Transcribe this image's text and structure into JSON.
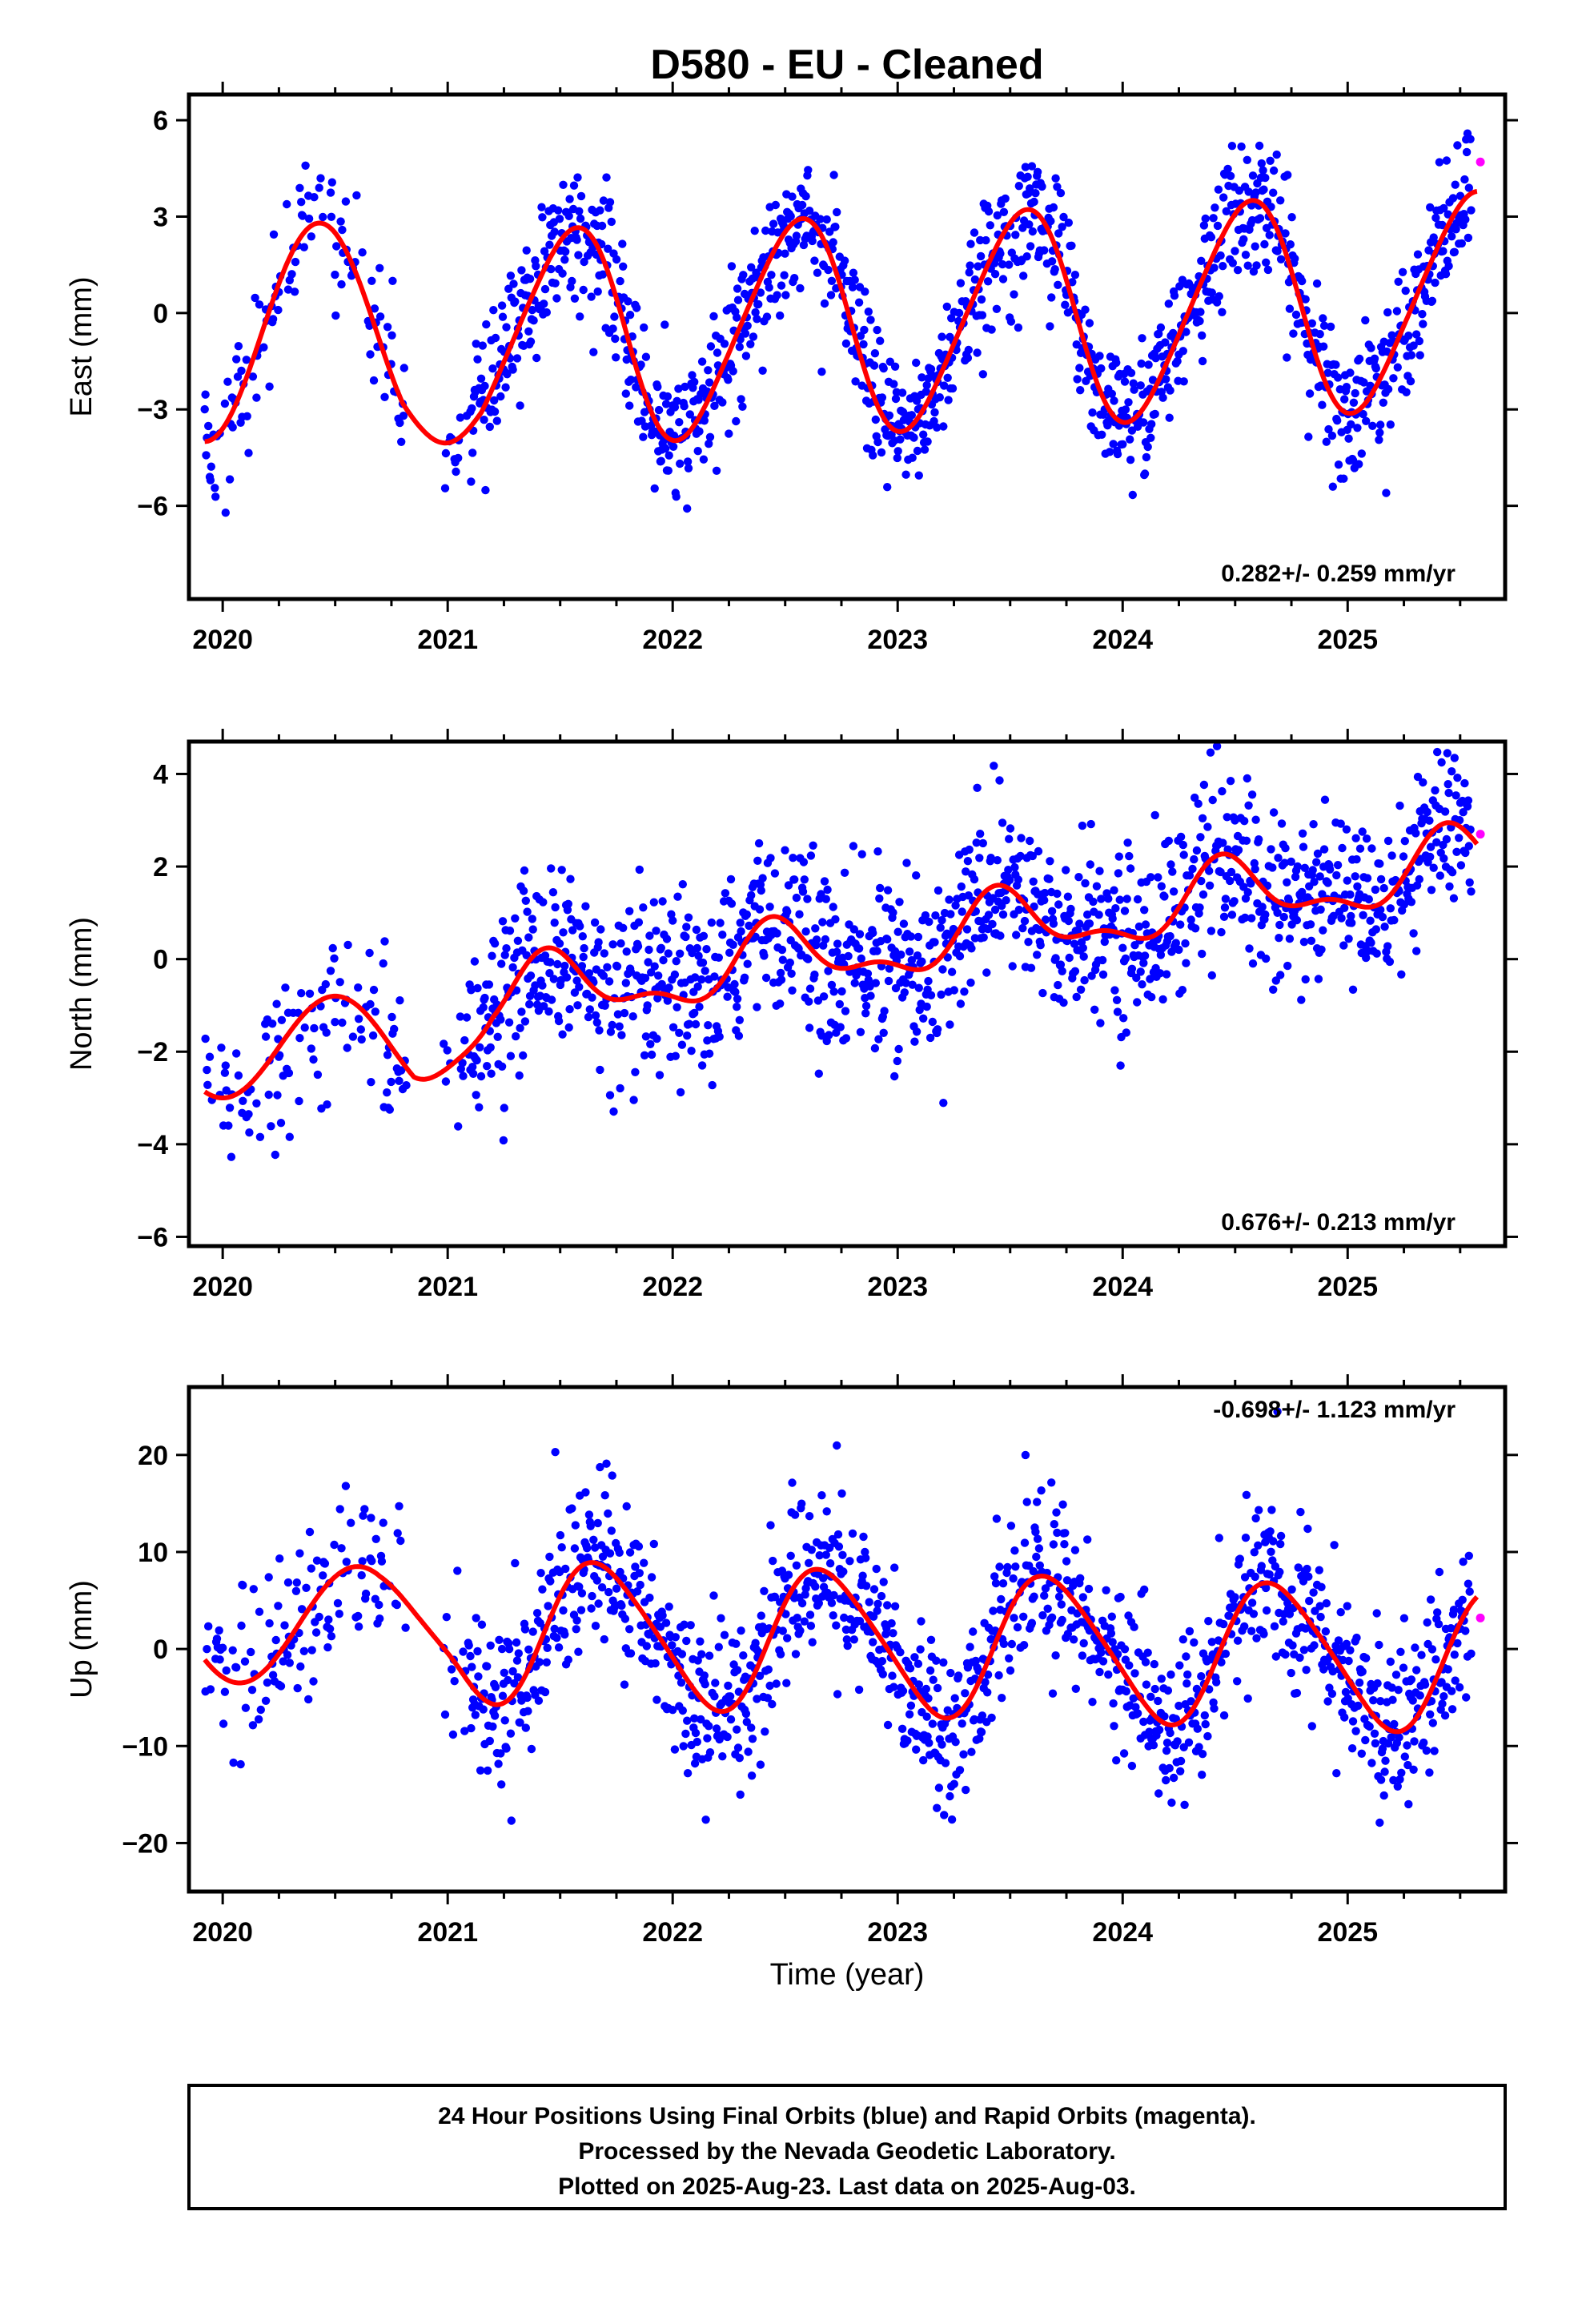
{
  "title": "D580  - EU - Cleaned",
  "xlabel": "Time (year)",
  "footer": {
    "line1": "24 Hour Positions Using Final Orbits (blue) and Rapid Orbits (magenta).",
    "line2": "Processed by the Nevada Geodetic Laboratory.",
    "line3": "Plotted on 2025-Aug-23. Last data on 2025-Aug-03."
  },
  "colors": {
    "final": "#0000ff",
    "rapid": "#ff00ff",
    "model": "#ff0000",
    "frame": "#000000"
  },
  "chart_data": [
    {
      "type": "scatter",
      "panel": "east",
      "ylabel": "East (mm)",
      "rate": "0.282+/- 0.259 mm/yr",
      "xlim": [
        2019.85,
        2025.7
      ],
      "ylim": [
        -8.9,
        6.8
      ],
      "xticks": [
        2020,
        2021,
        2022,
        2023,
        2024,
        2025
      ],
      "yticks": [
        -6,
        -3,
        0,
        3,
        6
      ],
      "model": {
        "offset": -0.38,
        "trend": 0.282,
        "t0": 2022.75,
        "annual_sin": -0.92,
        "annual_cos": -3.17,
        "semi_sin": 0.3,
        "semi_cos": -0.2,
        "early_end": 2021.15,
        "early_period": 1.02,
        "early_amp": 3.4,
        "early_phase_peak": 2020.43,
        "early_offset": -0.6
      },
      "noise": 1.05,
      "rapid": {
        "x": 2025.59,
        "y": 4.7
      }
    },
    {
      "type": "scatter",
      "panel": "north",
      "ylabel": "North (mm)",
      "rate": "0.676+/- 0.213 mm/yr",
      "xlim": [
        2019.85,
        2025.7
      ],
      "ylim": [
        -6.2,
        4.7
      ],
      "xticks": [
        2020,
        2021,
        2022,
        2023,
        2024,
        2025
      ],
      "yticks": [
        -6,
        -4,
        -2,
        0,
        2,
        4
      ],
      "model": {
        "offset": 0.15,
        "trend": 0.676,
        "t0": 2022.75,
        "annual_sin": 0.15,
        "annual_cos": -0.65,
        "semi_sin": -0.25,
        "semi_cos": 0.2,
        "early_end": 2021.2,
        "early_period": 1.0,
        "early_amp": 1.1,
        "early_phase_peak": 2020.5,
        "early_offset": -1.9
      },
      "noise": 0.95,
      "rapid": {
        "x": 2025.59,
        "y": 2.7
      }
    },
    {
      "type": "scatter",
      "panel": "up",
      "ylabel": "Up (mm)",
      "rate": "-0.698+/- 1.123 mm/yr",
      "xlim": [
        2019.85,
        2025.7
      ],
      "ylim": [
        -25,
        27
      ],
      "xticks": [
        2020,
        2021,
        2022,
        2023,
        2024,
        2025
      ],
      "yticks": [
        -20,
        -10,
        0,
        10,
        20
      ],
      "model": {
        "offset": 0.8,
        "trend": -0.698,
        "t0": 2022.75,
        "annual_sin": -6.6,
        "annual_cos": -3.0,
        "semi_sin": 0.5,
        "semi_cos": 0.8,
        "early_end": 2021.05,
        "early_period": 1.05,
        "early_amp": 6.0,
        "early_phase_peak": 2020.6,
        "early_offset": 2.5
      },
      "noise": 4.2,
      "rapid": {
        "x": 2025.59,
        "y": 3.2
      }
    }
  ]
}
